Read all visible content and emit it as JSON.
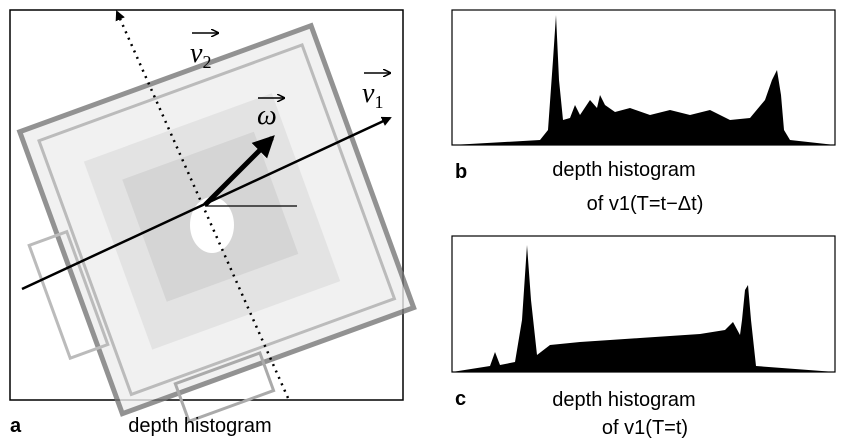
{
  "panel_a": {
    "letter": "a",
    "caption": "depth histogram",
    "vectors": [
      {
        "symbol": "v",
        "subscript": "2"
      },
      {
        "symbol": "v",
        "subscript": "1"
      },
      {
        "symbol": "ω"
      }
    ]
  },
  "panel_b": {
    "letter": "b",
    "caption": "depth histogram",
    "subcaption": "of v1(T=t−Δt)"
  },
  "panel_c": {
    "letter": "c",
    "caption": "depth histogram",
    "subcaption": "of v1(T=t)"
  }
}
